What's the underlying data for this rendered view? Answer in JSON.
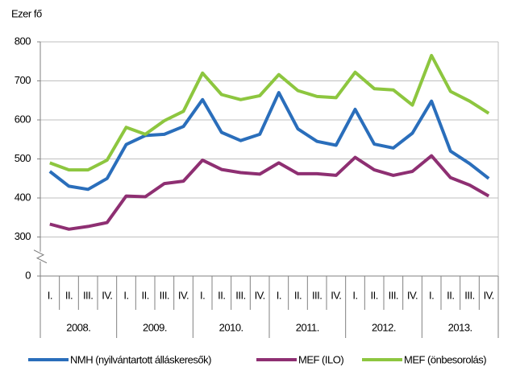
{
  "chart_data": {
    "type": "line",
    "y_axis_label": "Ezer fő",
    "categories": [
      "I.",
      "II.",
      "III.",
      "IV.",
      "I.",
      "II.",
      "III.",
      "IV.",
      "I.",
      "II.",
      "III.",
      "IV.",
      "I.",
      "II.",
      "III.",
      "IV.",
      "I.",
      "II.",
      "III.",
      "IV.",
      "I.",
      "II.",
      "III.",
      "IV."
    ],
    "years": [
      "2008.",
      "2009.",
      "2010.",
      "2011.",
      "2012.",
      "2013."
    ],
    "series": [
      {
        "name": "NMH (nyilvántartott álláskeresők)",
        "color": "#2a6ebb",
        "values": [
          468,
          430,
          422,
          450,
          537,
          560,
          563,
          583,
          652,
          568,
          547,
          563,
          670,
          577,
          545,
          535,
          627,
          538,
          528,
          566,
          648,
          520,
          488,
          450
        ]
      },
      {
        "name": "MEF (ILO)",
        "color": "#8e2f72",
        "values": [
          333,
          320,
          327,
          337,
          405,
          403,
          437,
          443,
          497,
          473,
          465,
          461,
          490,
          462,
          462,
          458,
          504,
          472,
          458,
          468,
          508,
          452,
          433,
          405
        ]
      },
      {
        "name": "MEF (önbesorolás)",
        "color": "#8dc63f",
        "values": [
          490,
          472,
          472,
          497,
          581,
          563,
          598,
          622,
          720,
          665,
          652,
          662,
          716,
          675,
          660,
          657,
          722,
          680,
          677,
          638,
          765,
          673,
          648,
          617
        ]
      }
    ],
    "ylim": [
      0,
      800
    ],
    "yticks": [
      0,
      300,
      400,
      500,
      600,
      700,
      800
    ],
    "axis_break": [
      0,
      300
    ],
    "grid": true,
    "legend": "bottom"
  }
}
